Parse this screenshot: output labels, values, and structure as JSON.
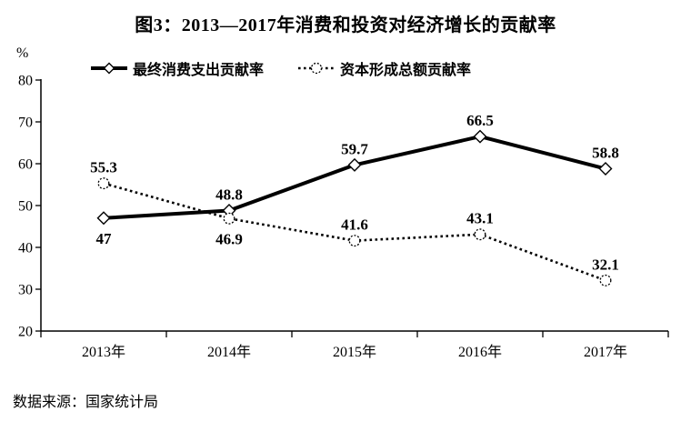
{
  "chart_data": {
    "type": "line",
    "title": "图3：2013—2017年消费和投资对经济增长的贡献率",
    "y_axis_unit": "%",
    "source_note": "数据来源：国家统计局",
    "categories": [
      "2013年",
      "2014年",
      "2015年",
      "2016年",
      "2017年"
    ],
    "series": [
      {
        "name": "最终消费支出贡献率",
        "marker": "diamond",
        "line_style": "solid",
        "values": [
          47,
          48.8,
          59.7,
          66.5,
          58.8
        ],
        "data_labels": [
          "47",
          "48.8",
          "59.7",
          "66.5",
          "58.8"
        ],
        "label_positions": [
          "below",
          "above",
          "above",
          "above",
          "above"
        ]
      },
      {
        "name": "资本形成总额贡献率",
        "marker": "circle",
        "line_style": "dotted",
        "values": [
          55.3,
          46.9,
          41.6,
          43.1,
          32.1
        ],
        "data_labels": [
          "55.3",
          "46.9",
          "41.6",
          "43.1",
          "32.1"
        ],
        "label_positions": [
          "above",
          "below",
          "above",
          "above",
          "above"
        ]
      }
    ],
    "y_axis": {
      "min": 20,
      "max": 80,
      "step": 10,
      "tick_labels": [
        "20",
        "30",
        "40",
        "50",
        "60",
        "70",
        "80"
      ]
    },
    "legend_position": "top",
    "grid": false,
    "colors": {
      "line": "#000000",
      "background": "#ffffff"
    }
  }
}
